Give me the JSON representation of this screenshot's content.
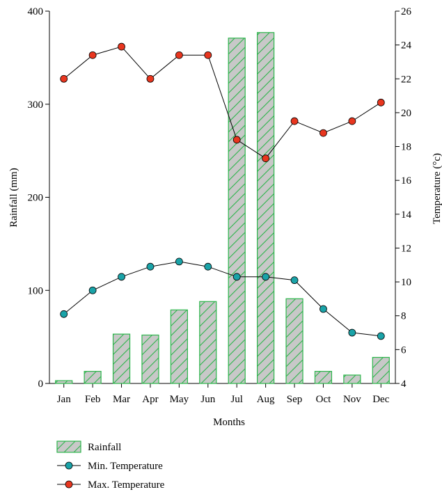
{
  "chart_data": {
    "type": "bar",
    "categories": [
      "Jan",
      "Feb",
      "Mar",
      "Apr",
      "May",
      "Jun",
      "Jul",
      "Aug",
      "Sep",
      "Oct",
      "Nov",
      "Dec"
    ],
    "xlabel": "Months",
    "ylabel": "Rainfall (mm)",
    "y2label": "Temperature (°c)",
    "ylim": [
      0,
      400
    ],
    "y2lim": [
      4,
      26
    ],
    "yticks": [
      0,
      100,
      200,
      300,
      400
    ],
    "y2ticks": [
      4,
      6,
      8,
      10,
      12,
      14,
      16,
      18,
      20,
      22,
      24,
      26
    ],
    "grid": false,
    "legend_position": "bottom-left",
    "series": [
      {
        "name": "Rainfall",
        "type": "bar",
        "axis": "left",
        "color": "#c8c8c8",
        "edge_color": "#2bb54a",
        "pattern": "diagonal-hatch",
        "values": [
          3,
          13,
          53,
          52,
          79,
          88,
          371,
          377,
          91,
          13,
          9,
          28
        ]
      },
      {
        "name": "Min. Temperature",
        "type": "line",
        "axis": "right",
        "marker_color": "#1aa3a8",
        "values": [
          8.1,
          9.5,
          10.3,
          10.9,
          11.2,
          10.9,
          10.3,
          10.3,
          10.1,
          8.4,
          7.0,
          6.8
        ]
      },
      {
        "name": "Max. Temperature",
        "type": "line",
        "axis": "right",
        "marker_color": "#e8361f",
        "values": [
          22.0,
          23.4,
          23.9,
          22.0,
          23.4,
          23.4,
          18.4,
          17.3,
          19.5,
          18.8,
          19.5,
          20.6
        ]
      }
    ]
  }
}
